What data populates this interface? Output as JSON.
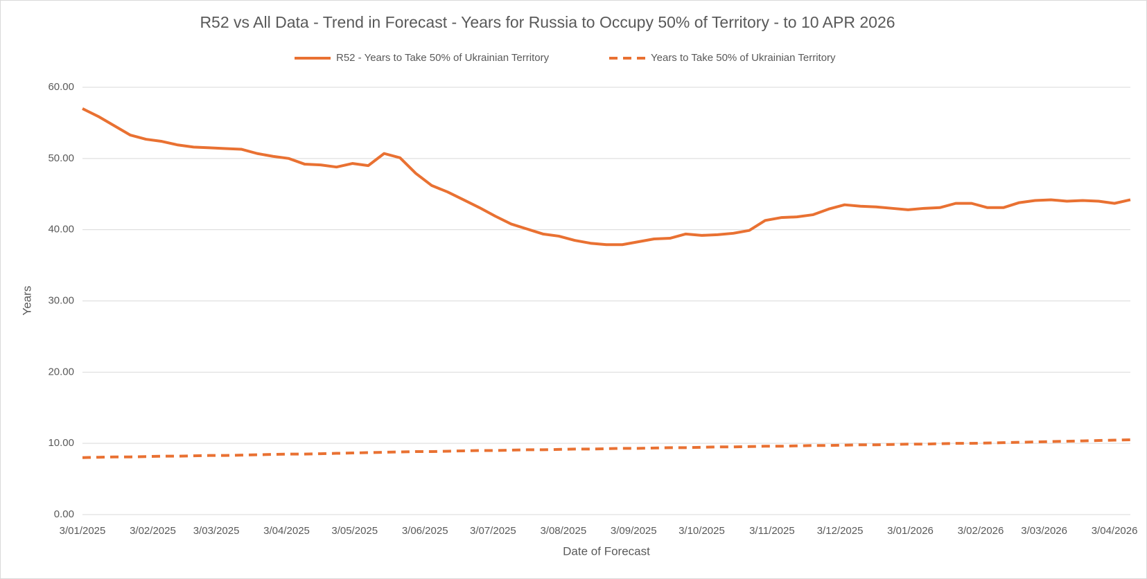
{
  "chart_data": {
    "type": "line",
    "title": "R52 vs All Data  - Trend in Forecast - Years for Russia to Occupy 50% of Territory - to 10 APR 2026",
    "x_label": "Date of Forecast",
    "y_label": "Years",
    "x": [
      "2025-01-03",
      "2025-01-10",
      "2025-01-17",
      "2025-01-24",
      "2025-01-31",
      "2025-02-07",
      "2025-02-14",
      "2025-02-21",
      "2025-02-28",
      "2025-03-07",
      "2025-03-14",
      "2025-03-21",
      "2025-03-28",
      "2025-04-04",
      "2025-04-11",
      "2025-04-18",
      "2025-04-25",
      "2025-05-02",
      "2025-05-09",
      "2025-05-16",
      "2025-05-23",
      "2025-05-30",
      "2025-06-06",
      "2025-06-13",
      "2025-06-20",
      "2025-06-27",
      "2025-07-04",
      "2025-07-11",
      "2025-07-18",
      "2025-07-25",
      "2025-08-01",
      "2025-08-08",
      "2025-08-15",
      "2025-08-22",
      "2025-08-29",
      "2025-09-05",
      "2025-09-12",
      "2025-09-19",
      "2025-09-26",
      "2025-10-03",
      "2025-10-10",
      "2025-10-17",
      "2025-10-24",
      "2025-10-31",
      "2025-11-07",
      "2025-11-14",
      "2025-11-21",
      "2025-11-28",
      "2025-12-05",
      "2025-12-12",
      "2025-12-19",
      "2025-12-26",
      "2026-01-02",
      "2026-01-09",
      "2026-01-16",
      "2026-01-23",
      "2026-01-30",
      "2026-02-06",
      "2026-02-13",
      "2026-02-20",
      "2026-02-27",
      "2026-03-06",
      "2026-03-13",
      "2026-03-20",
      "2026-03-27",
      "2026-04-03",
      "2026-04-10"
    ],
    "series": [
      {
        "name": "R52 - Years to Take  50% of Ukrainian Territory",
        "color": "#e97132",
        "line_style": "solid",
        "values": [
          57.0,
          55.9,
          54.6,
          53.3,
          52.7,
          52.4,
          51.9,
          51.6,
          51.5,
          51.4,
          51.3,
          50.7,
          50.3,
          50.0,
          49.2,
          49.1,
          48.8,
          49.3,
          49.0,
          50.7,
          50.1,
          47.9,
          46.2,
          45.3,
          44.2,
          43.1,
          41.9,
          40.8,
          40.1,
          39.4,
          39.1,
          38.5,
          38.1,
          37.9,
          37.9,
          38.3,
          38.7,
          38.8,
          39.4,
          39.2,
          39.3,
          39.5,
          39.9,
          41.3,
          41.7,
          41.8,
          42.1,
          42.9,
          43.5,
          43.3,
          43.2,
          43.0,
          42.8,
          43.0,
          43.1,
          43.7,
          43.7,
          43.1,
          43.1,
          43.8,
          44.1,
          44.2,
          44.0,
          44.1,
          44.0,
          43.7,
          44.2
        ]
      },
      {
        "name": "Years to Take  50% of Ukrainian Territory",
        "color": "#e97132",
        "line_style": "dashed",
        "values": [
          8.0,
          8.05,
          8.1,
          8.1,
          8.15,
          8.2,
          8.2,
          8.25,
          8.3,
          8.3,
          8.35,
          8.4,
          8.45,
          8.5,
          8.5,
          8.55,
          8.6,
          8.65,
          8.7,
          8.75,
          8.8,
          8.85,
          8.85,
          8.9,
          8.95,
          9.0,
          9.0,
          9.05,
          9.1,
          9.1,
          9.15,
          9.2,
          9.2,
          9.25,
          9.3,
          9.3,
          9.35,
          9.4,
          9.4,
          9.45,
          9.5,
          9.5,
          9.55,
          9.6,
          9.6,
          9.65,
          9.7,
          9.7,
          9.75,
          9.8,
          9.8,
          9.85,
          9.9,
          9.9,
          9.95,
          10.0,
          10.0,
          10.05,
          10.1,
          10.15,
          10.2,
          10.25,
          10.3,
          10.35,
          10.4,
          10.45,
          10.5
        ]
      }
    ],
    "xlim": [
      "2025-01-03",
      "2026-04-10"
    ],
    "xticks": [
      {
        "value": "2025-01-03",
        "label": "3/01/2025"
      },
      {
        "value": "2025-02-03",
        "label": "3/02/2025"
      },
      {
        "value": "2025-03-03",
        "label": "3/03/2025"
      },
      {
        "value": "2025-04-03",
        "label": "3/04/2025"
      },
      {
        "value": "2025-05-03",
        "label": "3/05/2025"
      },
      {
        "value": "2025-06-03",
        "label": "3/06/2025"
      },
      {
        "value": "2025-07-03",
        "label": "3/07/2025"
      },
      {
        "value": "2025-08-03",
        "label": "3/08/2025"
      },
      {
        "value": "2025-09-03",
        "label": "3/09/2025"
      },
      {
        "value": "2025-10-03",
        "label": "3/10/2025"
      },
      {
        "value": "2025-11-03",
        "label": "3/11/2025"
      },
      {
        "value": "2025-12-03",
        "label": "3/12/2025"
      },
      {
        "value": "2026-01-03",
        "label": "3/01/2026"
      },
      {
        "value": "2026-02-03",
        "label": "3/02/2026"
      },
      {
        "value": "2026-03-03",
        "label": "3/03/2026"
      },
      {
        "value": "2026-04-03",
        "label": "3/04/2026"
      }
    ],
    "ylim": [
      0,
      60
    ],
    "yticks": [
      {
        "value": 0,
        "label": "0.00"
      },
      {
        "value": 10,
        "label": "10.00"
      },
      {
        "value": 20,
        "label": "20.00"
      },
      {
        "value": 30,
        "label": "30.00"
      },
      {
        "value": 40,
        "label": "40.00"
      },
      {
        "value": 50,
        "label": "50.00"
      },
      {
        "value": 60,
        "label": "60.00"
      }
    ],
    "grid": true,
    "legend": "top"
  }
}
